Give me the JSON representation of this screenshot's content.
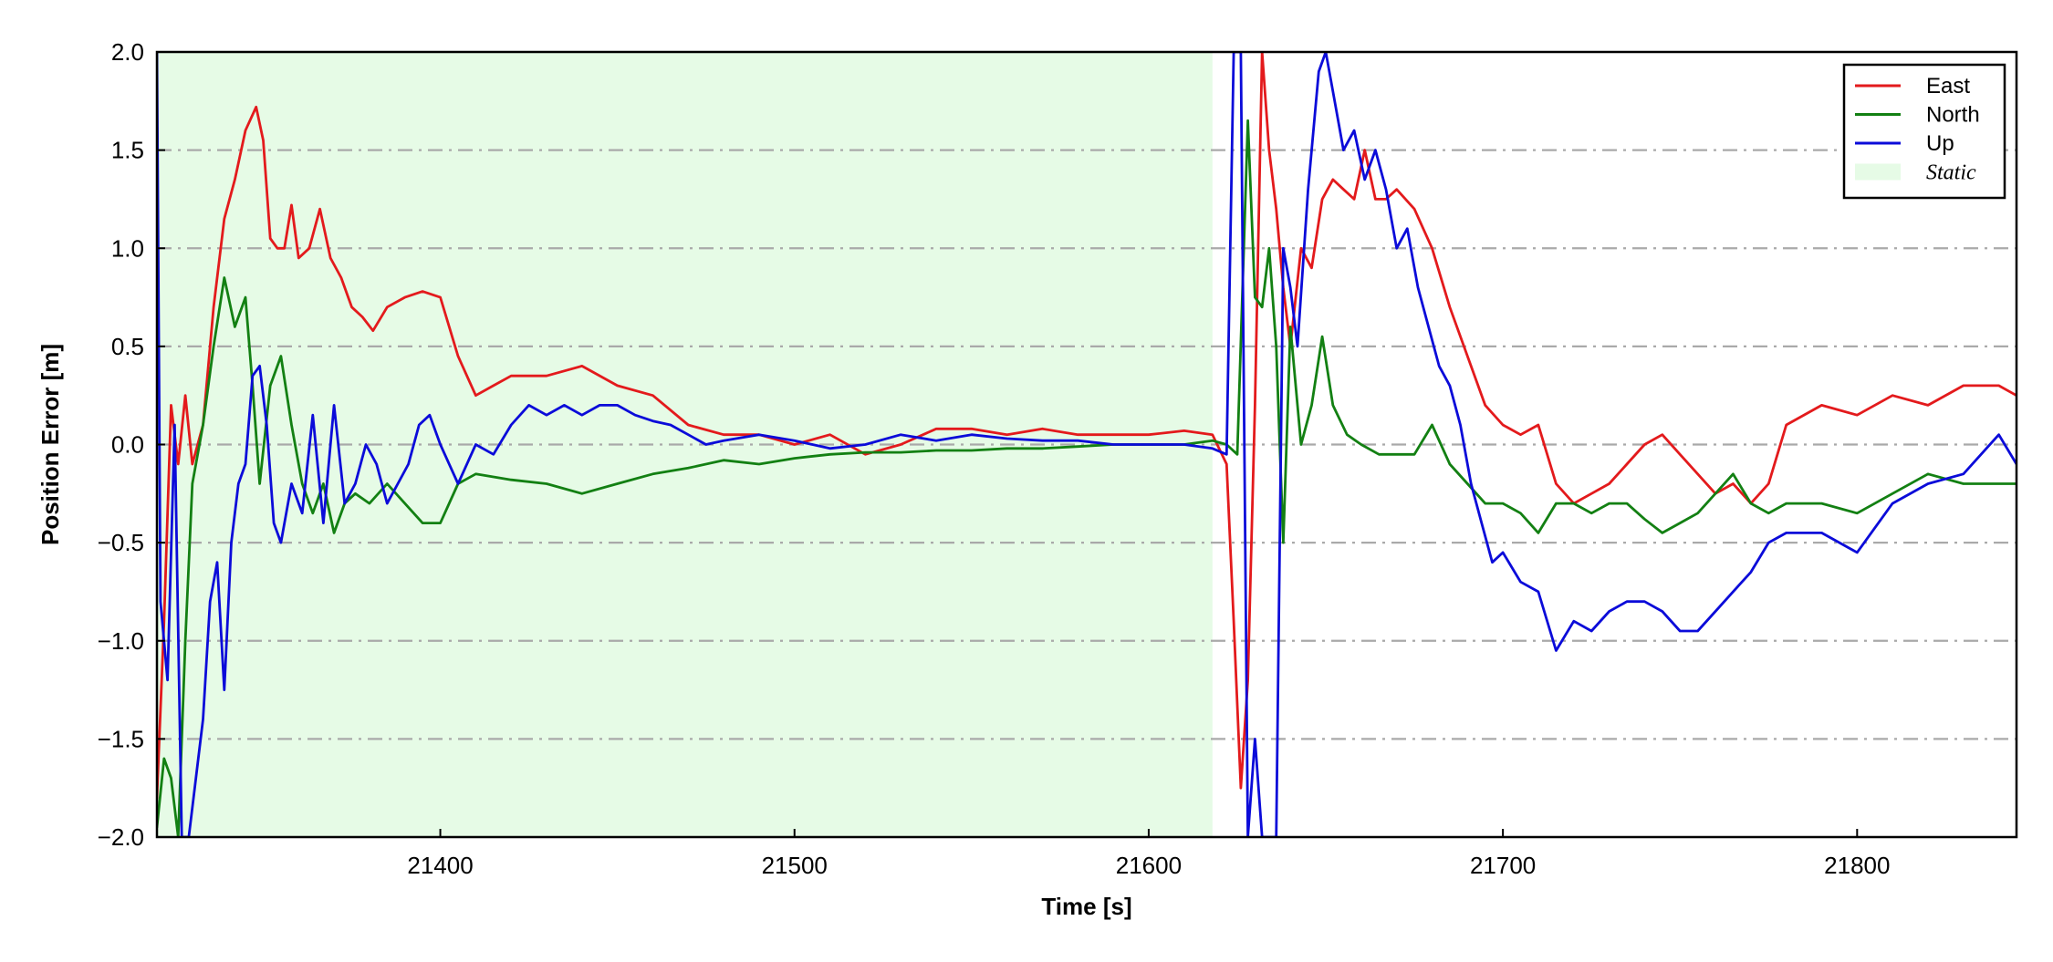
{
  "chart_data": {
    "type": "line",
    "title": "",
    "xlabel": "Time [s]",
    "ylabel": "Position Error [m]",
    "xlim": [
      21320,
      21845
    ],
    "ylim": [
      -2.0,
      2.0
    ],
    "xticks": [
      21400,
      21500,
      21600,
      21700,
      21800
    ],
    "yticks": [
      -2.0,
      -1.5,
      -1.0,
      -0.5,
      0.0,
      0.5,
      1.0,
      1.5,
      2.0
    ],
    "ytick_labels": [
      "−2.0",
      "−1.5",
      "−1.0",
      "−0.5",
      "0.0",
      "0.5",
      "1.0",
      "1.5",
      "2.0"
    ],
    "grid": "horizontal dash-dot",
    "legend_position": "top-right",
    "static_region": {
      "label": "Static",
      "x_start": 21320,
      "x_end": 21618,
      "color": "#e6fbe6"
    },
    "series": [
      {
        "name": "East",
        "color": "#e31a1c",
        "x": [
          21320,
          21322,
          21324,
          21326,
          21328,
          21330,
          21333,
          21336,
          21339,
          21342,
          21345,
          21348,
          21350,
          21352,
          21354,
          21356,
          21358,
          21360,
          21363,
          21366,
          21369,
          21372,
          21375,
          21378,
          21381,
          21385,
          21390,
          21395,
          21400,
          21405,
          21410,
          21415,
          21420,
          21430,
          21440,
          21450,
          21460,
          21470,
          21480,
          21490,
          21500,
          21510,
          21520,
          21530,
          21540,
          21550,
          21560,
          21570,
          21580,
          21590,
          21600,
          21610,
          21618,
          21622,
          21624,
          21626,
          21628,
          21630,
          21632,
          21634,
          21636,
          21638,
          21640,
          21643,
          21646,
          21649,
          21652,
          21655,
          21658,
          21661,
          21664,
          21667,
          21670,
          21675,
          21680,
          21685,
          21690,
          21695,
          21700,
          21705,
          21710,
          21715,
          21720,
          21725,
          21730,
          21735,
          21740,
          21745,
          21750,
          21755,
          21760,
          21765,
          21770,
          21775,
          21780,
          21790,
          21800,
          21810,
          21820,
          21830,
          21840,
          21845
        ],
        "y": [
          -1.8,
          -0.9,
          0.2,
          -0.1,
          0.25,
          -0.1,
          0.1,
          0.7,
          1.15,
          1.35,
          1.6,
          1.72,
          1.55,
          1.05,
          1.0,
          1.0,
          1.22,
          0.95,
          1.0,
          1.2,
          0.95,
          0.85,
          0.7,
          0.65,
          0.58,
          0.7,
          0.75,
          0.78,
          0.75,
          0.45,
          0.25,
          0.3,
          0.35,
          0.35,
          0.4,
          0.3,
          0.25,
          0.1,
          0.05,
          0.05,
          0.0,
          0.05,
          -0.05,
          0.0,
          0.08,
          0.08,
          0.05,
          0.08,
          0.05,
          0.05,
          0.05,
          0.07,
          0.05,
          -0.1,
          -0.9,
          -1.75,
          -1.2,
          0.2,
          2.0,
          1.5,
          1.2,
          0.8,
          0.5,
          1.0,
          0.9,
          1.25,
          1.35,
          1.3,
          1.25,
          1.5,
          1.25,
          1.25,
          1.3,
          1.2,
          1.0,
          0.7,
          0.45,
          0.2,
          0.1,
          0.05,
          0.1,
          -0.2,
          -0.3,
          -0.25,
          -0.2,
          -0.1,
          0.0,
          0.05,
          -0.05,
          -0.15,
          -0.25,
          -0.2,
          -0.3,
          -0.2,
          0.1,
          0.2,
          0.15,
          0.25,
          0.2,
          0.3,
          0.3,
          0.25
        ]
      },
      {
        "name": "North",
        "color": "#138013",
        "x": [
          21320,
          21322,
          21324,
          21326,
          21328,
          21330,
          21333,
          21336,
          21339,
          21342,
          21345,
          21347,
          21349,
          21352,
          21355,
          21358,
          21361,
          21364,
          21367,
          21370,
          21373,
          21376,
          21380,
          21385,
          21390,
          21395,
          21400,
          21405,
          21410,
          21420,
          21430,
          21440,
          21450,
          21460,
          21470,
          21480,
          21490,
          21500,
          21510,
          21520,
          21530,
          21540,
          21550,
          21560,
          21570,
          21580,
          21590,
          21600,
          21610,
          21618,
          21622,
          21625,
          21628,
          21630,
          21632,
          21634,
          21636,
          21638,
          21640,
          21643,
          21646,
          21649,
          21652,
          21656,
          21660,
          21665,
          21670,
          21675,
          21680,
          21685,
          21690,
          21695,
          21700,
          21705,
          21710,
          21715,
          21720,
          21725,
          21730,
          21735,
          21740,
          21745,
          21750,
          21755,
          21760,
          21765,
          21770,
          21775,
          21780,
          21790,
          21800,
          21810,
          21820,
          21830,
          21840,
          21845
        ],
        "y": [
          -1.95,
          -1.6,
          -1.7,
          -2.0,
          -1.0,
          -0.2,
          0.1,
          0.5,
          0.85,
          0.6,
          0.75,
          0.3,
          -0.2,
          0.3,
          0.45,
          0.1,
          -0.2,
          -0.35,
          -0.2,
          -0.45,
          -0.3,
          -0.25,
          -0.3,
          -0.2,
          -0.3,
          -0.4,
          -0.4,
          -0.2,
          -0.15,
          -0.18,
          -0.2,
          -0.25,
          -0.2,
          -0.15,
          -0.12,
          -0.08,
          -0.1,
          -0.07,
          -0.05,
          -0.04,
          -0.04,
          -0.03,
          -0.03,
          -0.02,
          -0.02,
          -0.01,
          0.0,
          0.0,
          0.0,
          0.02,
          0.0,
          -0.05,
          1.65,
          0.75,
          0.7,
          1.0,
          0.5,
          -0.5,
          0.6,
          0.0,
          0.2,
          0.55,
          0.2,
          0.05,
          0.0,
          -0.05,
          -0.05,
          -0.05,
          0.1,
          -0.1,
          -0.2,
          -0.3,
          -0.3,
          -0.35,
          -0.45,
          -0.3,
          -0.3,
          -0.35,
          -0.3,
          -0.3,
          -0.38,
          -0.45,
          -0.4,
          -0.35,
          -0.25,
          -0.15,
          -0.3,
          -0.35,
          -0.3,
          -0.3,
          -0.35,
          -0.25,
          -0.15,
          -0.2,
          -0.2,
          -0.2
        ]
      },
      {
        "name": "Up",
        "color": "#0b0bd9",
        "x": [
          21320,
          21321,
          21323,
          21325,
          21327,
          21329,
          21331,
          21333,
          21335,
          21337,
          21339,
          21341,
          21343,
          21345,
          21347,
          21349,
          21351,
          21353,
          21355,
          21358,
          21361,
          21364,
          21367,
          21370,
          21373,
          21376,
          21379,
          21382,
          21385,
          21388,
          21391,
          21394,
          21397,
          21400,
          21405,
          21410,
          21415,
          21420,
          21425,
          21430,
          21435,
          21440,
          21445,
          21450,
          21455,
          21460,
          21465,
          21470,
          21475,
          21480,
          21490,
          21500,
          21510,
          21520,
          21530,
          21540,
          21550,
          21560,
          21570,
          21580,
          21590,
          21600,
          21610,
          21618,
          21622,
          21624,
          21626,
          21628,
          21630,
          21632,
          21634,
          21636,
          21638,
          21640,
          21642,
          21645,
          21648,
          21650,
          21652,
          21655,
          21658,
          21661,
          21664,
          21667,
          21670,
          21673,
          21676,
          21679,
          21682,
          21685,
          21688,
          21691,
          21694,
          21697,
          21700,
          21705,
          21710,
          21715,
          21720,
          21725,
          21730,
          21735,
          21740,
          21745,
          21750,
          21755,
          21760,
          21765,
          21770,
          21775,
          21780,
          21790,
          21800,
          21810,
          21820,
          21830,
          21840,
          21845
        ],
        "y": [
          2.0,
          -0.8,
          -1.2,
          0.1,
          -2.0,
          -2.0,
          -1.7,
          -1.4,
          -0.8,
          -0.6,
          -1.25,
          -0.5,
          -0.2,
          -0.1,
          0.35,
          0.4,
          0.1,
          -0.4,
          -0.5,
          -0.2,
          -0.35,
          0.15,
          -0.4,
          0.2,
          -0.3,
          -0.2,
          0.0,
          -0.1,
          -0.3,
          -0.2,
          -0.1,
          0.1,
          0.15,
          0.0,
          -0.2,
          0.0,
          -0.05,
          0.1,
          0.2,
          0.15,
          0.2,
          0.15,
          0.2,
          0.2,
          0.15,
          0.12,
          0.1,
          0.05,
          0.0,
          0.02,
          0.05,
          0.02,
          -0.02,
          0.0,
          0.05,
          0.02,
          0.05,
          0.03,
          0.02,
          0.02,
          0.0,
          0.0,
          0.0,
          -0.02,
          -0.05,
          2.0,
          2.0,
          -2.0,
          -1.5,
          -2.0,
          -2.0,
          -2.0,
          1.0,
          0.8,
          0.5,
          1.3,
          1.9,
          2.0,
          1.8,
          1.5,
          1.6,
          1.35,
          1.5,
          1.3,
          1.0,
          1.1,
          0.8,
          0.6,
          0.4,
          0.3,
          0.1,
          -0.2,
          -0.4,
          -0.6,
          -0.55,
          -0.7,
          -0.75,
          -1.05,
          -0.9,
          -0.95,
          -0.85,
          -0.8,
          -0.8,
          -0.85,
          -0.95,
          -0.95,
          -0.85,
          -0.75,
          -0.65,
          -0.5,
          -0.45,
          -0.45,
          -0.55,
          -0.3,
          -0.2,
          -0.15,
          0.05,
          -0.1
        ]
      }
    ]
  }
}
